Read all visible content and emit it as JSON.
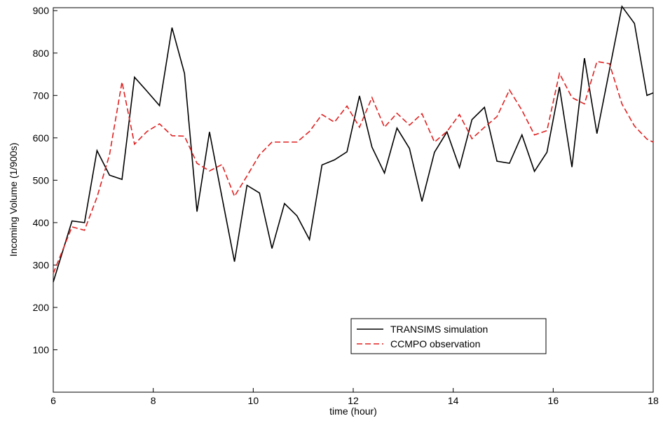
{
  "chart_data": {
    "type": "line",
    "xlabel": "time (hour)",
    "ylabel": "Incoming Volume (1/900s)",
    "x": [
      6,
      6.375,
      6.625,
      6.875,
      7.125,
      7.375,
      7.625,
      7.875,
      8.125,
      8.375,
      8.625,
      8.875,
      9.125,
      9.375,
      9.625,
      9.875,
      10.125,
      10.375,
      10.625,
      10.875,
      11.125,
      11.375,
      11.625,
      11.875,
      12.125,
      12.375,
      12.625,
      12.875,
      13.125,
      13.375,
      13.625,
      13.875,
      14.125,
      14.375,
      14.625,
      14.875,
      15.125,
      15.375,
      15.625,
      15.875,
      16.125,
      16.375,
      16.625,
      16.875,
      17.125,
      17.375,
      17.625,
      17.875,
      18
    ],
    "series": [
      {
        "name": "TRANSIMS simulation",
        "color": "#000000",
        "linestyle": "solid",
        "values": [
          260,
          404,
          400,
          570,
          512,
          502,
          743,
          710,
          676,
          860,
          752,
          426,
          614,
          460,
          308,
          488,
          470,
          339,
          445,
          416,
          360,
          536,
          548,
          567,
          699,
          578,
          517,
          623,
          575,
          450,
          566,
          614,
          530,
          643,
          672,
          545,
          540,
          607,
          521,
          566,
          720,
          531,
          788,
          610,
          760,
          910,
          870,
          700,
          706
        ]
      },
      {
        "name": "CCMPO observation",
        "color": "#e02020",
        "linestyle": "dashed",
        "values": [
          280,
          390,
          382,
          460,
          560,
          732,
          585,
          615,
          633,
          605,
          604,
          540,
          522,
          537,
          462,
          510,
          560,
          590,
          590,
          590,
          615,
          655,
          637,
          675,
          625,
          695,
          625,
          658,
          630,
          657,
          590,
          615,
          655,
          598,
          625,
          650,
          713,
          665,
          607,
          617,
          752,
          695,
          680,
          780,
          775,
          680,
          628,
          597,
          590
        ]
      }
    ],
    "xlim": [
      6,
      18
    ],
    "xticks": [
      6,
      8,
      10,
      12,
      14,
      16,
      18
    ],
    "ylim": [
      0,
      907
    ],
    "yticks": [
      100,
      200,
      300,
      400,
      500,
      600,
      700,
      800,
      900
    ]
  }
}
